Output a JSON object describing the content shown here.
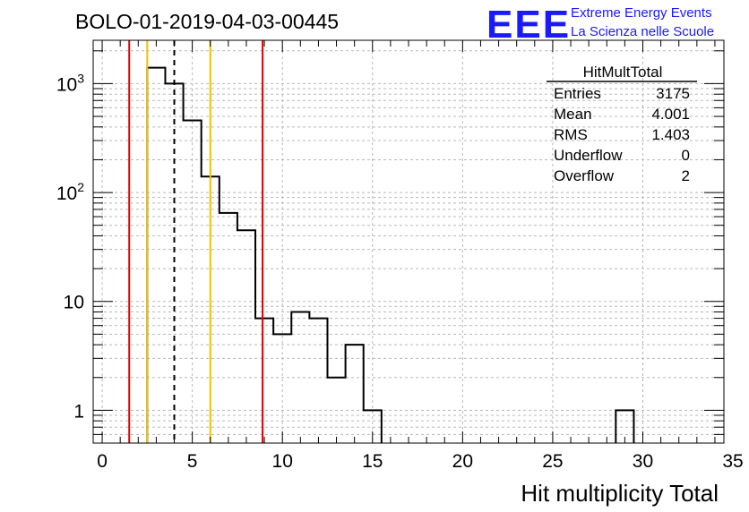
{
  "chart_data": {
    "type": "bar",
    "title": "BOLO-01-2019-04-03-00445",
    "xlabel": "Hit multiplicity Total",
    "ylabel": "",
    "xlim": [
      -0.5,
      34.5
    ],
    "ylim": [
      0.5,
      2500
    ],
    "y_scale": "log",
    "grid": true,
    "bin_width": 1,
    "bins": [
      {
        "x": 3,
        "value": 1400
      },
      {
        "x": 4,
        "value": 1000
      },
      {
        "x": 5,
        "value": 460
      },
      {
        "x": 6,
        "value": 140
      },
      {
        "x": 7,
        "value": 65
      },
      {
        "x": 8,
        "value": 45
      },
      {
        "x": 9,
        "value": 7
      },
      {
        "x": 10,
        "value": 5
      },
      {
        "x": 11,
        "value": 8
      },
      {
        "x": 12,
        "value": 7
      },
      {
        "x": 13,
        "value": 2
      },
      {
        "x": 14,
        "value": 4
      },
      {
        "x": 15,
        "value": 1
      },
      {
        "x": 29,
        "value": 1
      }
    ],
    "x_ticks": [
      0,
      5,
      10,
      15,
      20,
      25,
      30,
      35
    ],
    "x_tick_labels": [
      "0",
      "5",
      "10",
      "15",
      "20",
      "25",
      "30",
      "35"
    ],
    "y_ticks": [
      1,
      10,
      100,
      1000
    ],
    "y_tick_labels": [
      {
        "base": "1",
        "exp": ""
      },
      {
        "base": "10",
        "exp": ""
      },
      {
        "base": "10",
        "exp": "2"
      },
      {
        "base": "10",
        "exp": "3"
      }
    ],
    "vertical_lines": [
      {
        "x": 1.5,
        "color": "#e00000",
        "style": "solid"
      },
      {
        "x": 2.5,
        "color": "#f0c000",
        "style": "solid"
      },
      {
        "x": 4.0,
        "color": "#000000",
        "style": "dashed"
      },
      {
        "x": 6.0,
        "color": "#f0c000",
        "style": "solid"
      },
      {
        "x": 8.9,
        "color": "#e00000",
        "style": "solid"
      }
    ],
    "stats": {
      "name": "HitMultTotal",
      "rows": [
        {
          "label": "Entries",
          "value": "3175"
        },
        {
          "label": "Mean",
          "value": "4.001"
        },
        {
          "label": "RMS",
          "value": "1.403"
        },
        {
          "label": "Underflow",
          "value": "0"
        },
        {
          "label": "Overflow",
          "value": "2"
        }
      ]
    }
  },
  "branding": {
    "logo": "EEE",
    "line1": "Extreme Energy Events",
    "line2": "La Scienza nelle Scuole",
    "color": "#1a1aff"
  }
}
